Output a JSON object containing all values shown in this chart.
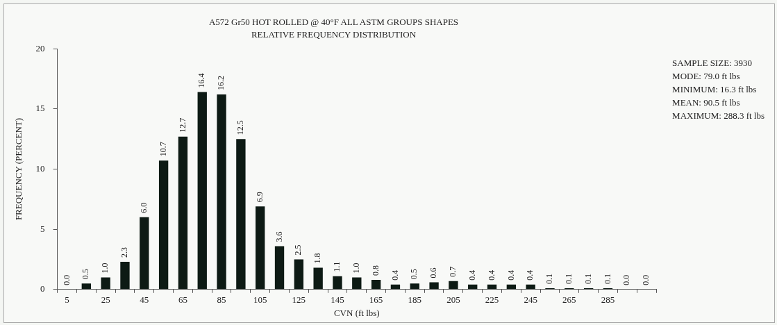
{
  "chart_data": {
    "type": "bar",
    "title": "A572 Gr50 HOT ROLLED @ 40°F ALL ASTM GROUPS SHAPES",
    "subtitle": "RELATIVE FREQUENCY DISTRIBUTION",
    "xlabel": "CVN (ft lbs)",
    "ylabel": "FREQUENCY (PERCENT)",
    "categories": [
      "5",
      null,
      "25",
      null,
      "45",
      null,
      "65",
      null,
      "85",
      null,
      "105",
      null,
      "125",
      null,
      "145",
      null,
      "165",
      null,
      "185",
      null,
      "205",
      null,
      "225",
      null,
      "245",
      null,
      "265",
      null,
      "285",
      null,
      null
    ],
    "values": [
      0.0,
      0.5,
      1.0,
      2.3,
      6.0,
      10.7,
      12.7,
      16.4,
      16.2,
      12.5,
      6.9,
      3.6,
      2.5,
      1.8,
      1.1,
      1.0,
      0.8,
      0.4,
      0.5,
      0.6,
      0.7,
      0.4,
      0.4,
      0.4,
      0.4,
      0.1,
      0.1,
      0.1,
      0.1,
      0.0,
      0.0
    ],
    "value_labels": [
      "0.0",
      "0.5",
      "1.0",
      "2.3",
      "6.0",
      "10.7",
      "12.7",
      "16.4",
      "16.2",
      "12.5",
      "6.9",
      "3.6",
      "2.5",
      "1.8",
      "1.1",
      "1.0",
      "0.8",
      "0.4",
      "0.5",
      "0.6",
      "0.7",
      "0.4",
      "0.4",
      "0.4",
      "0.4",
      "0.1",
      "0.1",
      "0.1",
      "0.1",
      "0.0",
      "0.0"
    ],
    "color": "#0d1a14",
    "ylim": [
      0,
      20
    ],
    "yticks": [
      0,
      5,
      10,
      15,
      20
    ],
    "grid": false,
    "legend": false,
    "annotations": [
      "SAMPLE SIZE: 3930",
      "MODE: 79.0 ft lbs",
      "MINIMUM: 16.3 ft lbs",
      "MEAN: 90.5 ft lbs",
      "MAXIMUM: 288.3 ft lbs"
    ]
  }
}
